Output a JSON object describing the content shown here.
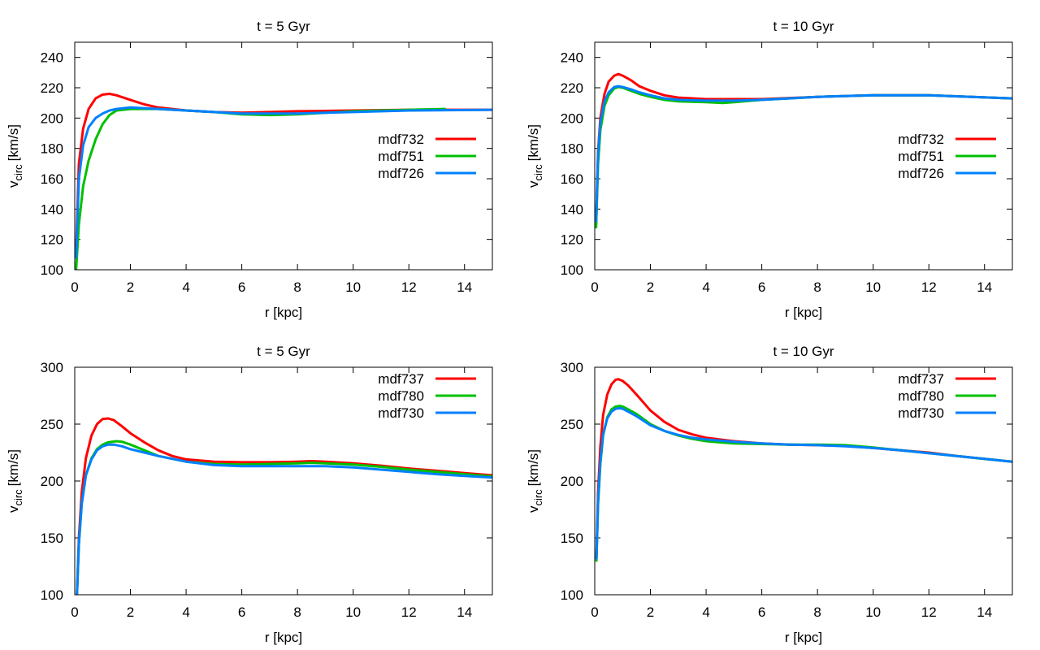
{
  "chart_data": [
    {
      "type": "line",
      "title": "t = 5 Gyr",
      "xlabel": "r [kpc]",
      "ylabel": "v",
      "ylabel_sub": "circ",
      "ylabel_unit": "[km/s]",
      "xlim": [
        0,
        15
      ],
      "ylim": [
        100,
        250
      ],
      "xticks": [
        0,
        2,
        4,
        6,
        8,
        10,
        12,
        14
      ],
      "yticks": [
        100,
        120,
        140,
        160,
        180,
        200,
        220,
        240
      ],
      "legend_position": "center-right",
      "series": [
        {
          "name": "mdf732",
          "color": "#ff0000",
          "x": [
            0.05,
            0.15,
            0.3,
            0.5,
            0.75,
            1.0,
            1.25,
            1.5,
            2.0,
            2.5,
            3.0,
            4.0,
            5.0,
            6.0,
            7.0,
            8.0,
            10.0,
            12.0,
            15.0
          ],
          "y": [
            112,
            170,
            193,
            206,
            213,
            215.5,
            216,
            215,
            212,
            209,
            207,
            205,
            204,
            203.5,
            204,
            204.5,
            205,
            205.5,
            205.5
          ]
        },
        {
          "name": "mdf751",
          "color": "#00c000",
          "x": [
            0.05,
            0.15,
            0.3,
            0.5,
            0.75,
            1.0,
            1.25,
            1.5,
            2.0,
            3.0,
            4.0,
            5.0,
            6.0,
            7.0,
            8.0,
            10.0,
            12.0,
            13.3
          ],
          "y": [
            100,
            130,
            155,
            172,
            186,
            196,
            202,
            205,
            206,
            206,
            205,
            204,
            202.5,
            202,
            202.5,
            204.5,
            205.5,
            206
          ]
        },
        {
          "name": "mdf726",
          "color": "#0080ff",
          "x": [
            0.05,
            0.15,
            0.3,
            0.5,
            0.75,
            1.0,
            1.25,
            1.5,
            2.0,
            3.0,
            4.0,
            5.0,
            6.0,
            7.0,
            8.0,
            10.0,
            12.0,
            15.0
          ],
          "y": [
            108,
            160,
            182,
            194,
            200,
            203,
            205,
            206,
            207,
            206,
            205,
            204,
            203,
            203,
            203,
            204,
            205,
            205.5
          ]
        }
      ]
    },
    {
      "type": "line",
      "title": "t = 10 Gyr",
      "xlabel": "r [kpc]",
      "ylabel": "v",
      "ylabel_sub": "circ",
      "ylabel_unit": "[km/s]",
      "xlim": [
        0,
        15
      ],
      "ylim": [
        100,
        250
      ],
      "xticks": [
        0,
        2,
        4,
        6,
        8,
        10,
        12,
        14
      ],
      "yticks": [
        100,
        120,
        140,
        160,
        180,
        200,
        220,
        240
      ],
      "legend_position": "center-right",
      "series": [
        {
          "name": "mdf732",
          "color": "#ff0000",
          "x": [
            0.05,
            0.12,
            0.2,
            0.35,
            0.5,
            0.7,
            0.85,
            1.0,
            1.3,
            1.6,
            2.0,
            2.5,
            3.0,
            4.0,
            5.0,
            6.0,
            8.0,
            10.0,
            12.0,
            15.0
          ],
          "y": [
            130,
            178,
            200,
            216,
            224,
            228,
            229,
            228,
            225,
            221,
            218,
            215,
            213.5,
            212.5,
            212.5,
            212.5,
            214,
            215,
            215,
            213
          ]
        },
        {
          "name": "mdf751",
          "color": "#00c000",
          "x": [
            0.05,
            0.12,
            0.2,
            0.35,
            0.5,
            0.7,
            0.85,
            1.0,
            1.3,
            1.6,
            2.0,
            2.5,
            3.0,
            4.0,
            4.6,
            5.0,
            6.0,
            8.0,
            10.0,
            12.0,
            15.0
          ],
          "y": [
            128,
            170,
            192,
            208,
            215,
            219.5,
            220.5,
            220,
            218,
            216,
            214,
            212,
            211,
            210.5,
            210,
            210.5,
            212,
            214,
            215,
            215,
            213
          ]
        },
        {
          "name": "mdf726",
          "color": "#0080ff",
          "x": [
            0.05,
            0.12,
            0.2,
            0.35,
            0.5,
            0.7,
            0.85,
            1.0,
            1.3,
            1.6,
            2.0,
            2.5,
            3.0,
            4.0,
            5.0,
            6.0,
            8.0,
            10.0,
            12.0,
            15.0
          ],
          "y": [
            132,
            176,
            197,
            211,
            217,
            220.5,
            221,
            220.5,
            219,
            217,
            215,
            213,
            212,
            211.5,
            211.5,
            212,
            214,
            215,
            215,
            213
          ]
        }
      ]
    },
    {
      "type": "line",
      "title": "t = 5 Gyr",
      "xlabel": "r [kpc]",
      "ylabel": "v",
      "ylabel_sub": "circ",
      "ylabel_unit": "[km/s]",
      "xlim": [
        0,
        15
      ],
      "ylim": [
        100,
        300
      ],
      "xticks": [
        0,
        2,
        4,
        6,
        8,
        10,
        12,
        14
      ],
      "yticks": [
        100,
        150,
        200,
        250,
        300
      ],
      "legend_position": "top-right",
      "series": [
        {
          "name": "mdf737",
          "color": "#ff0000",
          "x": [
            0.08,
            0.15,
            0.25,
            0.4,
            0.6,
            0.8,
            1.0,
            1.2,
            1.4,
            1.7,
            2.0,
            2.5,
            3.0,
            3.5,
            4.0,
            5.0,
            6.0,
            7.0,
            8.0,
            8.5,
            9.0,
            10.0,
            11.0,
            12.0,
            13.0,
            14.0,
            15.0
          ],
          "y": [
            100,
            150,
            190,
            220,
            240,
            250,
            254.5,
            255,
            253.5,
            248,
            242,
            234,
            227,
            222,
            219,
            217,
            216.5,
            216.5,
            217,
            217.5,
            217,
            215.5,
            213.5,
            211,
            209,
            207,
            205
          ]
        },
        {
          "name": "mdf780",
          "color": "#00c000",
          "x": [
            0.08,
            0.15,
            0.25,
            0.4,
            0.6,
            0.8,
            1.0,
            1.2,
            1.5,
            1.7,
            2.0,
            2.5,
            3.0,
            4.0,
            5.0,
            6.0,
            7.0,
            8.0,
            8.5,
            9.0,
            10.0,
            11.0,
            12.0,
            13.0,
            14.0,
            15.0
          ],
          "y": [
            100,
            145,
            180,
            205,
            220,
            228,
            232,
            234,
            235,
            234.5,
            232,
            227,
            222,
            217,
            215,
            214.5,
            215,
            215.5,
            216,
            215.5,
            214.5,
            212.5,
            210,
            208,
            206,
            204
          ]
        },
        {
          "name": "mdf730",
          "color": "#0080ff",
          "x": [
            0.08,
            0.15,
            0.25,
            0.4,
            0.6,
            0.8,
            1.0,
            1.2,
            1.4,
            1.7,
            2.0,
            2.5,
            3.0,
            4.0,
            5.0,
            6.0,
            7.0,
            8.0,
            9.0,
            10.0,
            11.0,
            12.0,
            13.0,
            14.0,
            15.0
          ],
          "y": [
            100,
            145,
            180,
            205,
            219,
            227,
            230.5,
            232,
            232,
            230.5,
            228,
            225,
            222,
            217,
            214,
            213,
            213,
            213,
            213,
            212,
            210,
            208,
            206,
            204.5,
            203
          ]
        }
      ]
    },
    {
      "type": "line",
      "title": "t = 10 Gyr",
      "xlabel": "r [kpc]",
      "ylabel": "v",
      "ylabel_sub": "circ",
      "ylabel_unit": "[km/s]",
      "xlim": [
        0,
        15
      ],
      "ylim": [
        100,
        300
      ],
      "xticks": [
        0,
        2,
        4,
        6,
        8,
        10,
        12,
        14
      ],
      "yticks": [
        100,
        150,
        200,
        250,
        300
      ],
      "legend_position": "top-right",
      "series": [
        {
          "name": "mdf737",
          "color": "#ff0000",
          "x": [
            0.06,
            0.12,
            0.2,
            0.3,
            0.45,
            0.6,
            0.75,
            0.85,
            1.0,
            1.2,
            1.5,
            2.0,
            2.5,
            3.0,
            3.5,
            4.0,
            5.0,
            6.0,
            7.0,
            8.0,
            9.0,
            10.0,
            11.0,
            12.0,
            13.0,
            14.0,
            15.0
          ],
          "y": [
            132,
            190,
            230,
            258,
            276,
            285,
            289,
            289.5,
            288,
            284,
            276,
            262,
            252,
            245,
            241,
            238,
            235,
            233,
            232,
            231.5,
            231,
            229,
            227,
            225,
            222,
            219.5,
            217
          ]
        },
        {
          "name": "mdf780",
          "color": "#00c000",
          "x": [
            0.06,
            0.12,
            0.2,
            0.3,
            0.45,
            0.6,
            0.75,
            0.9,
            1.0,
            1.2,
            1.5,
            2.0,
            2.5,
            3.0,
            3.5,
            4.0,
            5.0,
            6.0,
            7.0,
            8.0,
            9.0,
            10.0,
            11.0,
            12.0,
            13.0,
            14.0,
            15.0
          ],
          "y": [
            130,
            180,
            215,
            240,
            256,
            263,
            265.5,
            266,
            265.5,
            263,
            259,
            250,
            244,
            240,
            237,
            235,
            233,
            232.5,
            232,
            232,
            231.5,
            229.5,
            227,
            224.5,
            222,
            219.5,
            217
          ]
        },
        {
          "name": "mdf730",
          "color": "#0080ff",
          "x": [
            0.06,
            0.12,
            0.2,
            0.3,
            0.45,
            0.6,
            0.75,
            0.9,
            1.0,
            1.2,
            1.5,
            2.0,
            2.5,
            3.0,
            3.5,
            4.0,
            5.0,
            6.0,
            7.0,
            8.0,
            9.0,
            10.0,
            11.0,
            12.0,
            13.0,
            14.0,
            15.0
          ],
          "y": [
            132,
            182,
            217,
            241,
            255,
            261,
            263.5,
            264,
            263.5,
            261,
            257,
            249,
            244,
            240.5,
            238,
            236.5,
            234.5,
            233,
            232,
            231.5,
            230.5,
            229,
            227,
            224.5,
            222,
            219.5,
            217
          ]
        }
      ]
    }
  ]
}
